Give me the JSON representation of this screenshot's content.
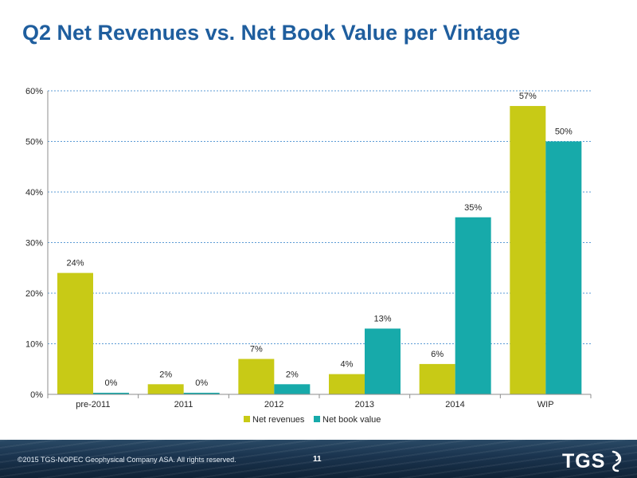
{
  "slide": {
    "title": "Q2 Net Revenues vs. Net Book Value per Vintage",
    "copyright": "©2015 TGS-NOPEC Geophysical Company ASA. All rights reserved.",
    "page_number": "11",
    "logo_text": "TGS"
  },
  "chart_data": {
    "type": "bar",
    "title": "",
    "xlabel": "",
    "ylabel": "",
    "categories": [
      "pre-2011",
      "2011",
      "2012",
      "2013",
      "2014",
      "WIP"
    ],
    "series": [
      {
        "name": "Net revenues",
        "values": [
          24,
          2,
          7,
          4,
          6,
          57
        ],
        "labels": [
          "24%",
          "2%",
          "7%",
          "4%",
          "6%",
          "57%"
        ],
        "color": "#C8CA16"
      },
      {
        "name": "Net book value",
        "values": [
          0,
          0,
          2,
          13,
          35,
          50
        ],
        "labels": [
          "0%",
          "0%",
          "2%",
          "13%",
          "35%",
          "50%"
        ],
        "color": "#17AAAA"
      }
    ],
    "ylim": [
      0,
      60
    ],
    "yticks": [
      0,
      10,
      20,
      30,
      40,
      50,
      60
    ],
    "ytick_labels": [
      "0%",
      "10%",
      "20%",
      "30%",
      "40%",
      "50%",
      "60%"
    ],
    "grid": true,
    "legend": "bottom"
  },
  "colors": {
    "title": "#1F5E9E",
    "gridline": "#5B9BD5",
    "axis": "#8c8c8c",
    "text": "#262626"
  }
}
